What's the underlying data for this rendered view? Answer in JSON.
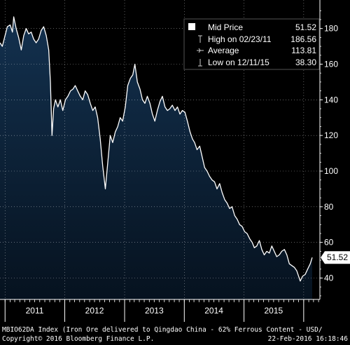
{
  "chart_data": {
    "type": "area",
    "ylim": [
      28,
      196
    ],
    "y_ticks": [
      40,
      60,
      80,
      100,
      120,
      140,
      160,
      180
    ],
    "x_labels": [
      "2011",
      "2012",
      "2013",
      "2014",
      "2015"
    ],
    "x_range": [
      "2010-12-01",
      "2016-02-22"
    ],
    "last_value_label": "51.52",
    "colors": {
      "fill_top": "#13314f",
      "fill_bottom": "#06121f",
      "line": "#ffffff",
      "grid": "#ffffff",
      "last_label_bg": "#ffffff"
    },
    "legend": {
      "placement": "top-right",
      "rows": [
        {
          "symbol": "square-icon",
          "label": "Mid Price",
          "value": "51.52"
        },
        {
          "symbol": "high-marker-icon",
          "label": "High on 02/23/11",
          "value": "186.56"
        },
        {
          "symbol": "average-marker-icon",
          "label": "Average",
          "value": "113.81"
        },
        {
          "symbol": "low-marker-icon",
          "label": "Low on 12/11/15",
          "value": "38.30"
        }
      ]
    },
    "series": [
      {
        "name": "Mid Price",
        "x": [
          "2010-12-01",
          "2010-12-15",
          "2011-01-01",
          "2011-01-15",
          "2011-02-01",
          "2011-02-15",
          "2011-02-23",
          "2011-03-10",
          "2011-03-25",
          "2011-04-10",
          "2011-04-25",
          "2011-05-10",
          "2011-05-25",
          "2011-06-10",
          "2011-06-25",
          "2011-07-10",
          "2011-07-25",
          "2011-08-10",
          "2011-08-25",
          "2011-09-10",
          "2011-09-25",
          "2011-10-05",
          "2011-10-15",
          "2011-10-25",
          "2011-11-05",
          "2011-11-20",
          "2011-12-05",
          "2011-12-20",
          "2012-01-05",
          "2012-01-20",
          "2012-02-05",
          "2012-02-20",
          "2012-03-05",
          "2012-03-20",
          "2012-04-05",
          "2012-04-20",
          "2012-05-05",
          "2012-05-20",
          "2012-06-05",
          "2012-06-20",
          "2012-07-05",
          "2012-07-20",
          "2012-08-05",
          "2012-08-20",
          "2012-09-05",
          "2012-09-20",
          "2012-10-05",
          "2012-10-20",
          "2012-11-05",
          "2012-11-20",
          "2012-12-05",
          "2012-12-20",
          "2013-01-05",
          "2013-01-20",
          "2013-02-05",
          "2013-02-20",
          "2013-03-05",
          "2013-03-20",
          "2013-04-05",
          "2013-04-20",
          "2013-05-05",
          "2013-05-20",
          "2013-06-05",
          "2013-06-20",
          "2013-07-05",
          "2013-07-20",
          "2013-08-05",
          "2013-08-20",
          "2013-09-05",
          "2013-09-20",
          "2013-10-05",
          "2013-10-20",
          "2013-11-05",
          "2013-11-20",
          "2013-12-05",
          "2013-12-20",
          "2014-01-05",
          "2014-01-20",
          "2014-02-05",
          "2014-02-20",
          "2014-03-05",
          "2014-03-20",
          "2014-04-05",
          "2014-04-20",
          "2014-05-05",
          "2014-05-20",
          "2014-06-05",
          "2014-06-20",
          "2014-07-05",
          "2014-07-20",
          "2014-08-05",
          "2014-08-20",
          "2014-09-05",
          "2014-09-20",
          "2014-10-05",
          "2014-10-20",
          "2014-11-05",
          "2014-11-20",
          "2014-12-05",
          "2014-12-20",
          "2015-01-05",
          "2015-01-20",
          "2015-02-05",
          "2015-02-20",
          "2015-03-05",
          "2015-03-20",
          "2015-04-05",
          "2015-04-20",
          "2015-05-05",
          "2015-05-20",
          "2015-06-05",
          "2015-06-20",
          "2015-07-05",
          "2015-07-20",
          "2015-08-05",
          "2015-08-20",
          "2015-09-05",
          "2015-09-20",
          "2015-10-05",
          "2015-10-20",
          "2015-11-05",
          "2015-11-20",
          "2015-12-11",
          "2015-12-25",
          "2016-01-10",
          "2016-01-25",
          "2016-02-10",
          "2016-02-22"
        ],
        "values": [
          172,
          170,
          176,
          181,
          182,
          178,
          186.56,
          180,
          175,
          168,
          176,
          180,
          177,
          178,
          174,
          172,
          174,
          179,
          181,
          176,
          168,
          150,
          120,
          135,
          140,
          136,
          140,
          134,
          140,
          142,
          145,
          146,
          148,
          145,
          142,
          140,
          145,
          143,
          138,
          134,
          136,
          130,
          118,
          103,
          90,
          105,
          120,
          116,
          122,
          125,
          130,
          128,
          136,
          148,
          152,
          154,
          160,
          150,
          146,
          140,
          138,
          142,
          138,
          132,
          128,
          134,
          139,
          142,
          136,
          134,
          135,
          137,
          134,
          136,
          132,
          134,
          133,
          128,
          122,
          118,
          116,
          112,
          114,
          108,
          102,
          100,
          97,
          95,
          94,
          90,
          93,
          88,
          84,
          82,
          79,
          80,
          75,
          73,
          70,
          69,
          66,
          65,
          62,
          60,
          57,
          58,
          61,
          56,
          53,
          55,
          54,
          58,
          55,
          52,
          53,
          55,
          56,
          53,
          48,
          47,
          46,
          44,
          38.3,
          41,
          42,
          45,
          48,
          51.52
        ]
      }
    ]
  },
  "footer": {
    "line1": "MBIO62DA Index (Iron Ore delivered to Qingdao China - 62% Ferrous Content - USD/",
    "line2_left": "Copyright© 2016 Bloomberg Finance L.P.",
    "line2_right": "22-Feb-2016 16:18:46"
  }
}
